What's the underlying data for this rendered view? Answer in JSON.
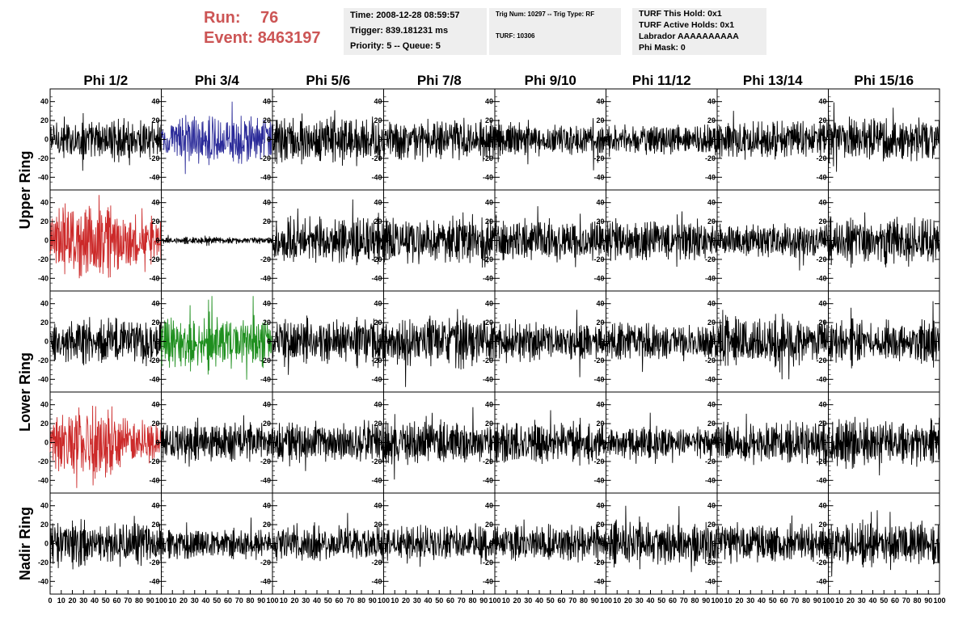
{
  "header": {
    "run_label": "Run:",
    "run_value": "76",
    "event_label": "Event:",
    "event_value": "8463197",
    "time": "Time: 2008-12-28 08:59:57",
    "trigger": "Trigger: 839.181231 ms",
    "priority": "Priority: 5 -- Queue: 5",
    "trig_num": "Trig Num: 10297 -- Trig Type: RF",
    "turf": "TURF: 10306",
    "turf_hold": "TURF This Hold: 0x1",
    "turf_active": "TURF Active Holds: 0x1",
    "labrador": "Labrador AAAAAAAAAA",
    "phi_mask": "Phi Mask: 0"
  },
  "colors": {
    "header_red": "#cc5555",
    "box_bg": "#eeeeee",
    "trace_default": "#000000",
    "trace_blue": "#2b2b99",
    "trace_red": "#cc2a2a",
    "trace_green": "#1f8f1f"
  },
  "chart_data": {
    "type": "line",
    "columns": [
      "Phi 1/2",
      "Phi 3/4",
      "Phi 5/6",
      "Phi 7/8",
      "Phi 9/10",
      "Phi 11/12",
      "Phi 13/14",
      "Phi 15/16"
    ],
    "ring_labels": [
      {
        "label": "Upper Ring",
        "rows": [
          0,
          1
        ]
      },
      {
        "label": "Lower Ring",
        "rows": [
          2,
          3
        ]
      },
      {
        "label": "Nadir Ring",
        "rows": [
          4
        ]
      }
    ],
    "rows": 5,
    "xlim": [
      0,
      100
    ],
    "ylim": [
      -50,
      50
    ],
    "y_ticks": [
      -40,
      -20,
      0,
      20,
      40
    ],
    "x_ticks": [
      0,
      10,
      20,
      30,
      40,
      50,
      60,
      70,
      80,
      90,
      100
    ],
    "samples": 260,
    "grid": false,
    "panels": [
      {
        "row": 0,
        "col": 0,
        "color": "#000000",
        "amplitude": 12
      },
      {
        "row": 0,
        "col": 1,
        "color": "#2b2b99",
        "amplitude": 14
      },
      {
        "row": 0,
        "col": 2,
        "color": "#000000",
        "amplitude": 14
      },
      {
        "row": 0,
        "col": 3,
        "color": "#000000",
        "amplitude": 13
      },
      {
        "row": 0,
        "col": 4,
        "color": "#000000",
        "amplitude": 10
      },
      {
        "row": 0,
        "col": 5,
        "color": "#000000",
        "amplitude": 9
      },
      {
        "row": 0,
        "col": 6,
        "color": "#000000",
        "amplitude": 11
      },
      {
        "row": 0,
        "col": 7,
        "color": "#000000",
        "amplitude": 13
      },
      {
        "row": 1,
        "col": 0,
        "color": "#cc2a2a",
        "amplitude": 22
      },
      {
        "row": 1,
        "col": 1,
        "color": "#000000",
        "amplitude": 2
      },
      {
        "row": 1,
        "col": 2,
        "color": "#000000",
        "amplitude": 14
      },
      {
        "row": 1,
        "col": 3,
        "color": "#000000",
        "amplitude": 14
      },
      {
        "row": 1,
        "col": 4,
        "color": "#000000",
        "amplitude": 12
      },
      {
        "row": 1,
        "col": 5,
        "color": "#000000",
        "amplitude": 12
      },
      {
        "row": 1,
        "col": 6,
        "color": "#000000",
        "amplitude": 10
      },
      {
        "row": 1,
        "col": 7,
        "color": "#000000",
        "amplitude": 15
      },
      {
        "row": 2,
        "col": 0,
        "color": "#000000",
        "amplitude": 13
      },
      {
        "row": 2,
        "col": 1,
        "color": "#1f8f1f",
        "amplitude": 15
      },
      {
        "row": 2,
        "col": 2,
        "color": "#000000",
        "amplitude": 14
      },
      {
        "row": 2,
        "col": 3,
        "color": "#000000",
        "amplitude": 15
      },
      {
        "row": 2,
        "col": 4,
        "color": "#000000",
        "amplitude": 11
      },
      {
        "row": 2,
        "col": 5,
        "color": "#000000",
        "amplitude": 11
      },
      {
        "row": 2,
        "col": 6,
        "color": "#000000",
        "amplitude": 14
      },
      {
        "row": 2,
        "col": 7,
        "color": "#000000",
        "amplitude": 12
      },
      {
        "row": 3,
        "col": 0,
        "color": "#cc2a2a",
        "amplitude": 22
      },
      {
        "row": 3,
        "col": 1,
        "color": "#000000",
        "amplitude": 11
      },
      {
        "row": 3,
        "col": 2,
        "color": "#000000",
        "amplitude": 12
      },
      {
        "row": 3,
        "col": 3,
        "color": "#000000",
        "amplitude": 12
      },
      {
        "row": 3,
        "col": 4,
        "color": "#000000",
        "amplitude": 12
      },
      {
        "row": 3,
        "col": 5,
        "color": "#000000",
        "amplitude": 9
      },
      {
        "row": 3,
        "col": 6,
        "color": "#000000",
        "amplitude": 12
      },
      {
        "row": 3,
        "col": 7,
        "color": "#000000",
        "amplitude": 14
      },
      {
        "row": 4,
        "col": 0,
        "color": "#000000",
        "amplitude": 13
      },
      {
        "row": 4,
        "col": 1,
        "color": "#000000",
        "amplitude": 9
      },
      {
        "row": 4,
        "col": 2,
        "color": "#000000",
        "amplitude": 11
      },
      {
        "row": 4,
        "col": 3,
        "color": "#000000",
        "amplitude": 11
      },
      {
        "row": 4,
        "col": 4,
        "color": "#000000",
        "amplitude": 11
      },
      {
        "row": 4,
        "col": 5,
        "color": "#000000",
        "amplitude": 13
      },
      {
        "row": 4,
        "col": 6,
        "color": "#000000",
        "amplitude": 11
      },
      {
        "row": 4,
        "col": 7,
        "color": "#000000",
        "amplitude": 12
      }
    ]
  }
}
